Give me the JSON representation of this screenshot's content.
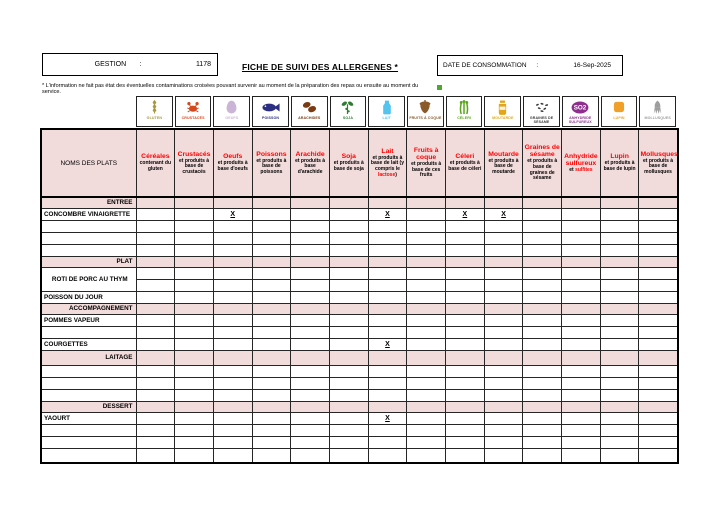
{
  "page": {
    "gestion_label": "GESTION",
    "gestion_colon": ":",
    "gestion_value": "1178",
    "title": "FICHE DE SUIVI DES ALLERGENES *",
    "date_label": "DATE DE CONSOMMATION",
    "date_colon": ":",
    "date_value": "16-Sep-2025",
    "note": "* L'information ne fait pas état des éventuelles contaminations croisées pouvant survenir au moment de la préparation des repas ou ensuite au moment du service."
  },
  "colors": {
    "section_pink": "#f2dcdb",
    "allergen_red": "#ff0000",
    "marker_green": "#4ea72e"
  },
  "table": {
    "first_column_header": "NOMS DES PLATS",
    "mark_symbol": "X",
    "allergens": [
      {
        "name": "Céréales",
        "desc": [
          {
            "t": "contenant du gluten"
          }
        ],
        "icon": "wheat-icon",
        "icon_label": "GLUTEN",
        "icon_color": "#a89a3c"
      },
      {
        "name": "Crustacés",
        "desc": [
          {
            "t": "et produits à base de crustacés"
          }
        ],
        "icon": "crab-icon",
        "icon_label": "CRUSTACÉS",
        "icon_color": "#d44a1e"
      },
      {
        "name": "Oeufs",
        "desc": [
          {
            "t": "et produits à base d'oeufs"
          }
        ],
        "icon": "egg-icon",
        "icon_label": "OEUFS",
        "icon_color": "#cbb4d5"
      },
      {
        "name": "Poissons",
        "desc": [
          {
            "t": "et produits à base de poissons"
          }
        ],
        "icon": "fish-icon",
        "icon_label": "POISSON",
        "icon_color": "#2b2e83"
      },
      {
        "name": "Arachide",
        "desc": [
          {
            "t": "et produits à base d'arachide"
          }
        ],
        "icon": "peanut-icon",
        "icon_label": "ARACHIDES",
        "icon_color": "#7a3b12"
      },
      {
        "name": "Soja",
        "desc": [
          {
            "t": "et produits à base de soja"
          }
        ],
        "icon": "soy-icon",
        "icon_label": "SOJA",
        "icon_color": "#2e7d32"
      },
      {
        "name": "Lait",
        "desc": [
          {
            "t": "et produits à base de lait (y compris le "
          },
          {
            "t": "lactose",
            "red": true
          },
          {
            "t": ")"
          }
        ],
        "icon": "milk-icon",
        "icon_label": "LAIT",
        "icon_color": "#54c4ef"
      },
      {
        "name": "Fruits à coque",
        "desc": [
          {
            "t": "et produits à base de ces fruits"
          }
        ],
        "icon": "nut-icon",
        "icon_label": "FRUITS À COQUE",
        "icon_color": "#8a5a2a"
      },
      {
        "name": "Céleri",
        "desc": [
          {
            "t": "et produits à base de céleri"
          }
        ],
        "icon": "celery-icon",
        "icon_label": "CÉLERI",
        "icon_color": "#58a618"
      },
      {
        "name": "Moutarde",
        "desc": [
          {
            "t": "et produits à base de moutarde"
          }
        ],
        "icon": "mustard-icon",
        "icon_label": "MOUTARDE",
        "icon_color": "#e3a61b"
      },
      {
        "name": "Graines de sésame",
        "desc": [
          {
            "t": "et produits à base de graines de sésame"
          }
        ],
        "icon": "sesame-icon",
        "icon_label": "GRAINES DE SÉSAME",
        "icon_color": "#3a3a3a"
      },
      {
        "name": "Anhydride sulfureux",
        "desc": [
          {
            "t": "et "
          },
          {
            "t": "sulfites",
            "red": true
          }
        ],
        "icon": "so2-icon",
        "icon_label": "ANHYDRIDE SULFUREUX",
        "icon_color": "#8e2f8e"
      },
      {
        "name": "Lupin",
        "desc": [
          {
            "t": "et produits à base de lupin"
          }
        ],
        "icon": "lupin-icon",
        "icon_label": "LUPIN",
        "icon_color": "#f0a028"
      },
      {
        "name": "Mollusques",
        "desc": [
          {
            "t": "et produits à base de mollusques"
          }
        ],
        "icon": "squid-icon",
        "icon_label": "MOLLUSQUES",
        "icon_color": "#9e9e9e"
      }
    ],
    "rows": [
      {
        "type": "section",
        "label": "ENTREE"
      },
      {
        "type": "dish",
        "label": "CONCOMBRE VINAIGRETTE",
        "marks": [
          2,
          6,
          8,
          9
        ]
      },
      {
        "type": "dish",
        "label": ""
      },
      {
        "type": "dish",
        "label": ""
      },
      {
        "type": "dish",
        "label": ""
      },
      {
        "type": "section",
        "label": "PLAT"
      },
      {
        "type": "dish",
        "label": "ROTI DE PORC AU THYM",
        "rowspan": 2,
        "align": "center"
      },
      {
        "type": "dish",
        "skip": true
      },
      {
        "type": "dish",
        "label": "POISSON DU JOUR"
      },
      {
        "type": "section",
        "label": "ACCOMPAGNEMENT"
      },
      {
        "type": "dish",
        "label": "POMMES VAPEUR"
      },
      {
        "type": "dish",
        "label": ""
      },
      {
        "type": "dish",
        "label": "COURGETTES",
        "marks": [
          6
        ]
      },
      {
        "type": "section",
        "label": "LAITAGE",
        "tall": true
      },
      {
        "type": "dish",
        "label": ""
      },
      {
        "type": "dish",
        "label": ""
      },
      {
        "type": "dish",
        "label": ""
      },
      {
        "type": "section",
        "label": "DESSERT"
      },
      {
        "type": "dish",
        "label": "YAOURT",
        "marks": [
          6
        ]
      },
      {
        "type": "dish",
        "label": ""
      },
      {
        "type": "dish",
        "label": ""
      },
      {
        "type": "dish",
        "label": "",
        "tall": true
      }
    ]
  }
}
